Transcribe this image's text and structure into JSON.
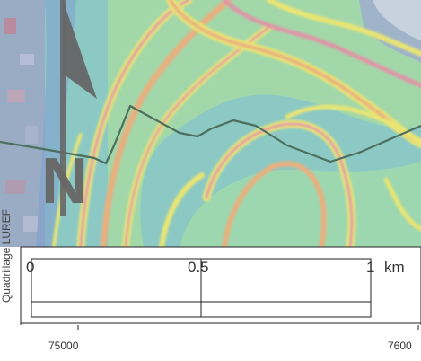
{
  "map": {
    "grid_label": "Quadrillage LUREF",
    "north_arrow": {
      "letter": "N",
      "icon": "north-arrow-icon"
    },
    "scale_bar": {
      "labels": [
        "0",
        "0.5",
        "1"
      ],
      "unit": "km"
    },
    "x_ticks": [
      "75000",
      "7600"
    ],
    "colors": {
      "background": "#8cc9c4",
      "ridge_yellow": "#e9e573",
      "ridge_orange": "#e8b07f",
      "ridge_pink": "#e095a6",
      "route_line": "#4d6f5d",
      "north_arrow": "#666666"
    }
  }
}
